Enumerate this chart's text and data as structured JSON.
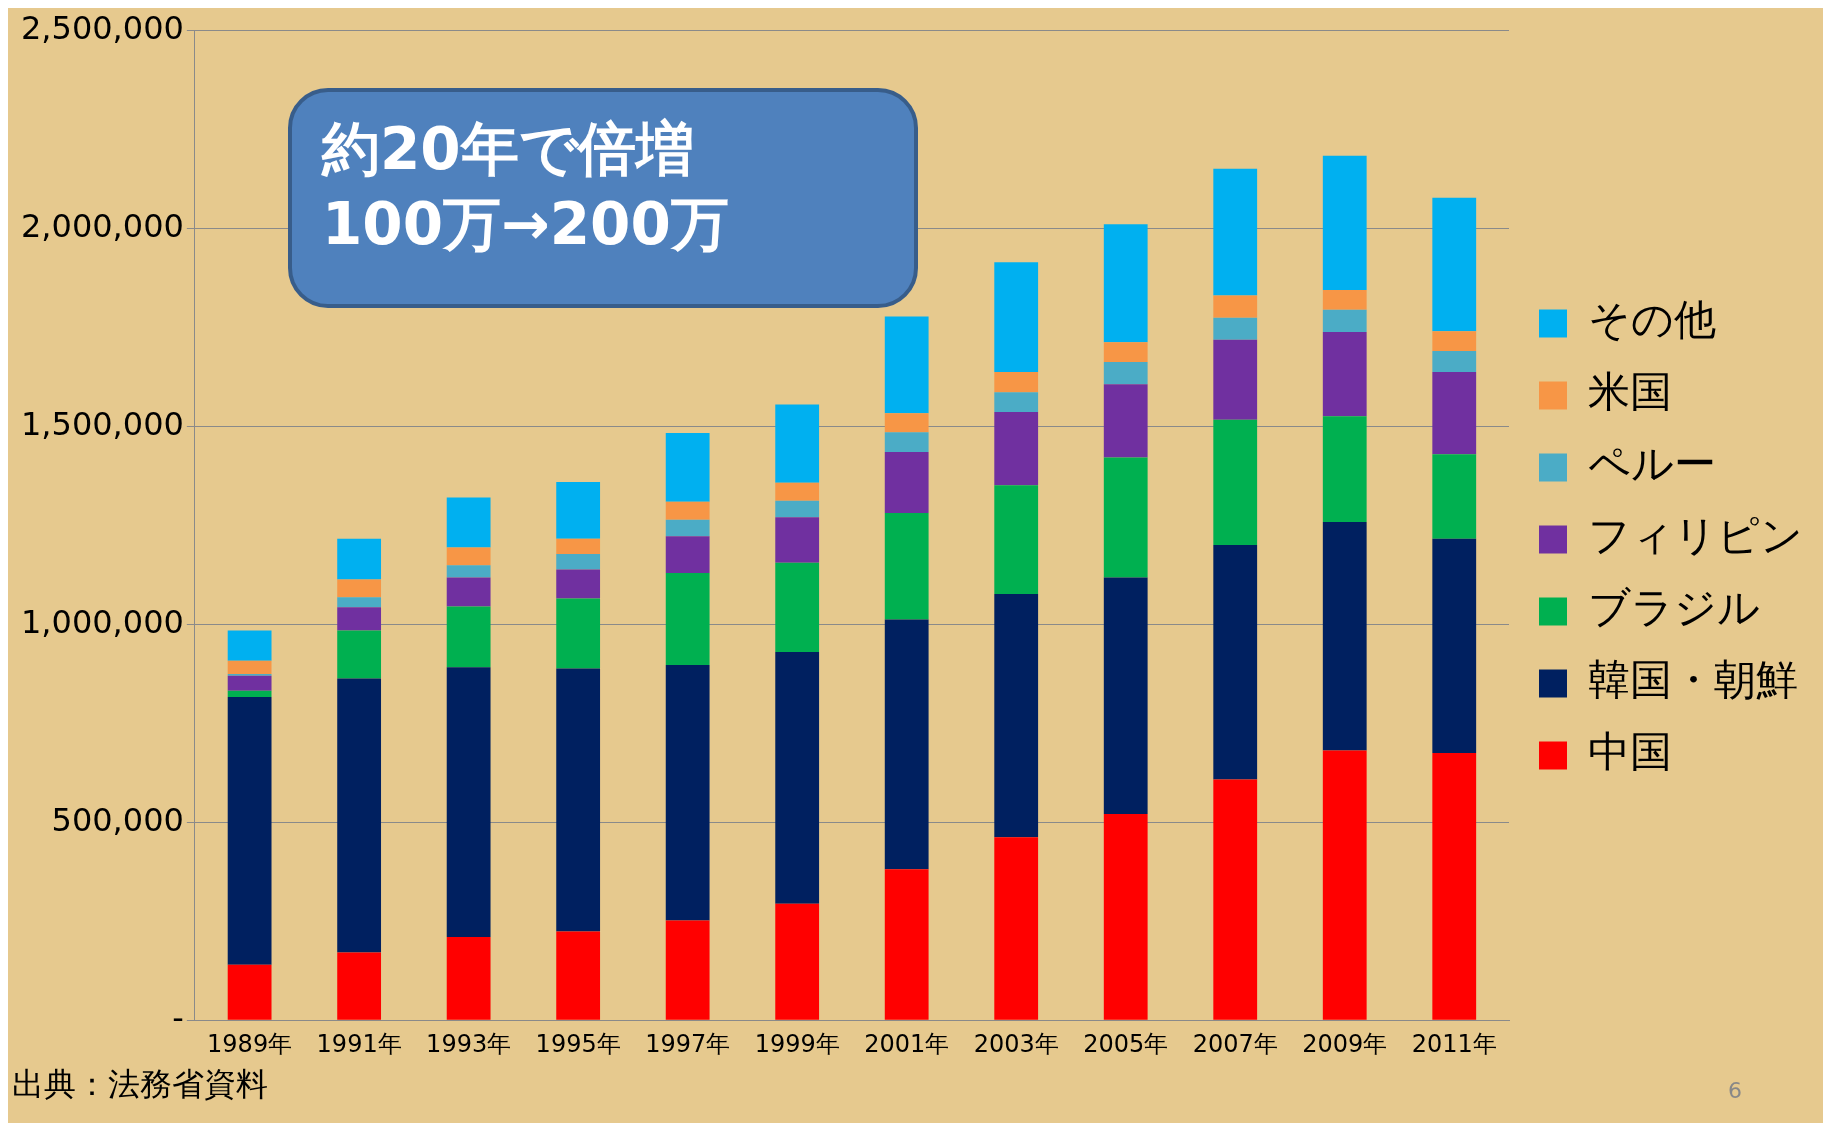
{
  "chart_data": {
    "type": "bar",
    "stacked": true,
    "categories": [
      "1989年",
      "1991年",
      "1993年",
      "1995年",
      "1997年",
      "1999年",
      "2001年",
      "2003年",
      "2005年",
      "2007年",
      "2009年",
      "2011年"
    ],
    "series": [
      {
        "name": "中国",
        "color": "#ff0000",
        "values": [
          140000,
          171000,
          210000,
          224000,
          252000,
          294000,
          381000,
          462000,
          521000,
          608000,
          681000,
          675000
        ]
      },
      {
        "name": "韓国・朝鮮",
        "color": "#002060",
        "values": [
          676000,
          692000,
          681000,
          664000,
          645000,
          636000,
          631000,
          614000,
          597000,
          592000,
          577000,
          541000
        ]
      },
      {
        "name": "ブラジル",
        "color": "#00b050",
        "values": [
          16000,
          121000,
          154000,
          177000,
          232000,
          225000,
          269000,
          275000,
          303000,
          316000,
          267000,
          213000
        ]
      },
      {
        "name": "フィリピン",
        "color": "#7030a0",
        "values": [
          38000,
          59000,
          73000,
          73000,
          93000,
          115000,
          154000,
          185000,
          185000,
          202000,
          213000,
          208000
        ]
      },
      {
        "name": "ペルー",
        "color": "#4bacc6",
        "values": [
          4000,
          25000,
          31000,
          39000,
          42000,
          42000,
          50000,
          50000,
          56000,
          56000,
          56000,
          53000
        ]
      },
      {
        "name": "米国",
        "color": "#f79646",
        "values": [
          34000,
          45000,
          45000,
          39000,
          45000,
          45000,
          48000,
          51000,
          50000,
          56000,
          50000,
          50000
        ]
      },
      {
        "name": "その他",
        "color": "#00b0f0",
        "values": [
          76000,
          103000,
          126000,
          143000,
          174000,
          198000,
          244000,
          277000,
          298000,
          320000,
          339000,
          337000
        ]
      }
    ],
    "ylim": [
      0,
      2500000
    ],
    "yticks": [
      {
        "value": 0,
        "label": "-"
      },
      {
        "value": 500000,
        "label": "500,000"
      },
      {
        "value": 1000000,
        "label": "1,000,000"
      },
      {
        "value": 1500000,
        "label": "1,500,000"
      },
      {
        "value": 2000000,
        "label": "2,000,000"
      },
      {
        "value": 2500000,
        "label": "2,500,000"
      }
    ],
    "grid": "y",
    "legend": "right",
    "annotations": [
      "約20年で倍増\n100万→200万",
      "出典：法務省資料",
      "6"
    ]
  }
}
